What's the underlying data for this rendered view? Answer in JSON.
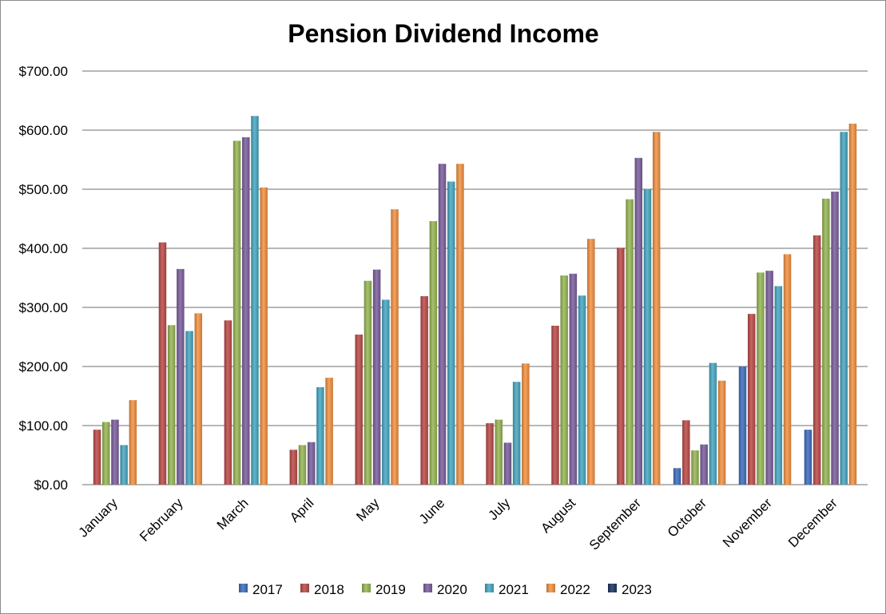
{
  "chart_data": {
    "type": "bar",
    "title": "Pension Dividend Income",
    "xlabel": "",
    "ylabel": "",
    "ylim": [
      0,
      700
    ],
    "y_ticks": [
      "$0.00",
      "$100.00",
      "$200.00",
      "$300.00",
      "$400.00",
      "$500.00",
      "$600.00",
      "$700.00"
    ],
    "grid": true,
    "legend_position": "bottom",
    "categories": [
      "January",
      "February",
      "March",
      "April",
      "May",
      "June",
      "July",
      "August",
      "September",
      "October",
      "November",
      "December"
    ],
    "series": [
      {
        "name": "2017",
        "color": "#4472c4",
        "values": [
          0,
          0,
          0,
          0,
          0,
          0,
          0,
          0,
          0,
          28,
          200,
          93
        ]
      },
      {
        "name": "2018",
        "color": "#c0504d",
        "values": [
          93,
          410,
          278,
          59,
          254,
          319,
          104,
          269,
          401,
          109,
          289,
          422
        ]
      },
      {
        "name": "2019",
        "color": "#9bbb59",
        "values": [
          106,
          270,
          582,
          67,
          345,
          446,
          110,
          354,
          483,
          58,
          359,
          484
        ]
      },
      {
        "name": "2020",
        "color": "#8064a2",
        "values": [
          110,
          365,
          588,
          72,
          364,
          543,
          71,
          357,
          553,
          68,
          362,
          496
        ]
      },
      {
        "name": "2021",
        "color": "#4bacc6",
        "values": [
          67,
          260,
          624,
          165,
          313,
          513,
          174,
          320,
          500,
          206,
          336,
          597
        ]
      },
      {
        "name": "2022",
        "color": "#f79646",
        "values": [
          143,
          290,
          503,
          181,
          466,
          543,
          205,
          416,
          597,
          176,
          390,
          611
        ]
      },
      {
        "name": "2023",
        "color": "#1f3864",
        "values": [
          0,
          0,
          0,
          0,
          0,
          0,
          0,
          0,
          0,
          0,
          0,
          0
        ]
      }
    ]
  }
}
